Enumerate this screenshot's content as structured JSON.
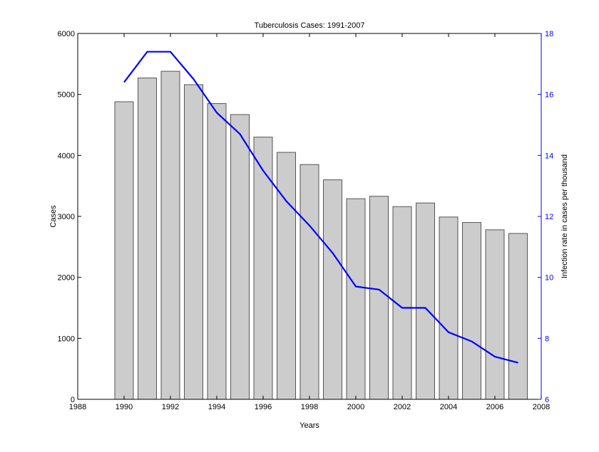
{
  "chart_data": {
    "type": "bar",
    "title": "Tuberculosis Cases: 1991-2007",
    "xlabel": "Years",
    "ylabel": "Cases",
    "y2label": "Infection rate in cases per thousand",
    "xlim": [
      1988,
      2008
    ],
    "ylim": [
      0,
      6000
    ],
    "y2lim": [
      6,
      18
    ],
    "xticks": [
      1988,
      1990,
      1992,
      1994,
      1996,
      1998,
      2000,
      2002,
      2004,
      2006,
      2008
    ],
    "yticks": [
      0,
      1000,
      2000,
      3000,
      4000,
      5000,
      6000
    ],
    "y2ticks": [
      6,
      8,
      10,
      12,
      14,
      16,
      18
    ],
    "grid": false,
    "x": [
      1990,
      1991,
      1992,
      1993,
      1994,
      1995,
      1996,
      1997,
      1998,
      1999,
      2000,
      2001,
      2002,
      2003,
      2004,
      2005,
      2006,
      2007
    ],
    "series": [
      {
        "type": "bar",
        "axis": "left",
        "values": [
          4880,
          5270,
          5380,
          5160,
          4850,
          4670,
          4300,
          4050,
          3850,
          3600,
          3290,
          3330,
          3160,
          3220,
          2990,
          2900,
          2780,
          2720
        ]
      },
      {
        "type": "line",
        "axis": "right",
        "values": [
          16.4,
          17.4,
          17.4,
          16.5,
          15.4,
          14.7,
          13.5,
          12.5,
          11.7,
          10.8,
          9.7,
          9.6,
          9.0,
          9.0,
          8.2,
          7.9,
          7.4,
          7.2
        ]
      }
    ],
    "colors": {
      "bar_fill": "#cccccc",
      "bar_stroke": "#555555",
      "line": "#0000ff",
      "right_axis": "#0000ff",
      "axis": "#000000"
    }
  }
}
